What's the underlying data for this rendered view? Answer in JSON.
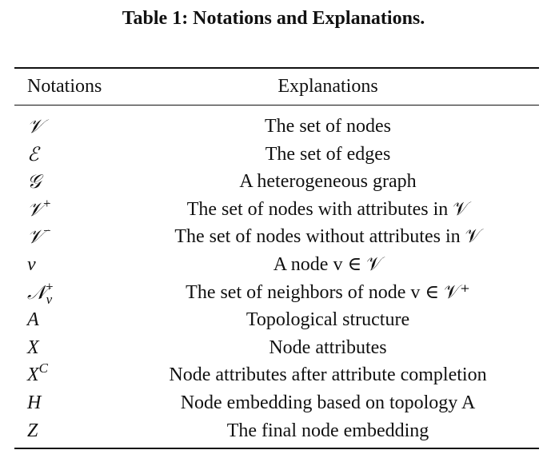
{
  "caption": "Table 1: Notations and Explanations.",
  "table": {
    "headers": [
      "Notations",
      "Explanations"
    ],
    "rows": [
      {
        "symbol": "𝒱",
        "explanation": "The set of nodes"
      },
      {
        "symbol": "ℰ",
        "explanation": "The set of edges"
      },
      {
        "symbol": "𝒢",
        "explanation": "A heterogeneous graph"
      },
      {
        "symbol": "𝒱",
        "symbol_sup": "+",
        "explanation": "The set of nodes with attributes in 𝒱"
      },
      {
        "symbol": "𝒱",
        "symbol_sup": "−",
        "explanation": "The set of nodes without attributes in 𝒱"
      },
      {
        "symbol": "v",
        "explanation": "A node v ∈ 𝒱"
      },
      {
        "symbol": "𝒩",
        "symbol_sup": "+",
        "symbol_sub": "v",
        "explanation": "The set of neighbors of node v ∈ 𝒱⁺"
      },
      {
        "symbol": "A",
        "explanation": "Topological structure"
      },
      {
        "symbol": "X",
        "explanation": "Node attributes"
      },
      {
        "symbol": "X",
        "symbol_sup": "C",
        "explanation": "Node attributes after attribute completion"
      },
      {
        "symbol": "H",
        "explanation": "Node embedding based on topology A"
      },
      {
        "symbol": "Z",
        "explanation": "The final node embedding"
      }
    ]
  }
}
